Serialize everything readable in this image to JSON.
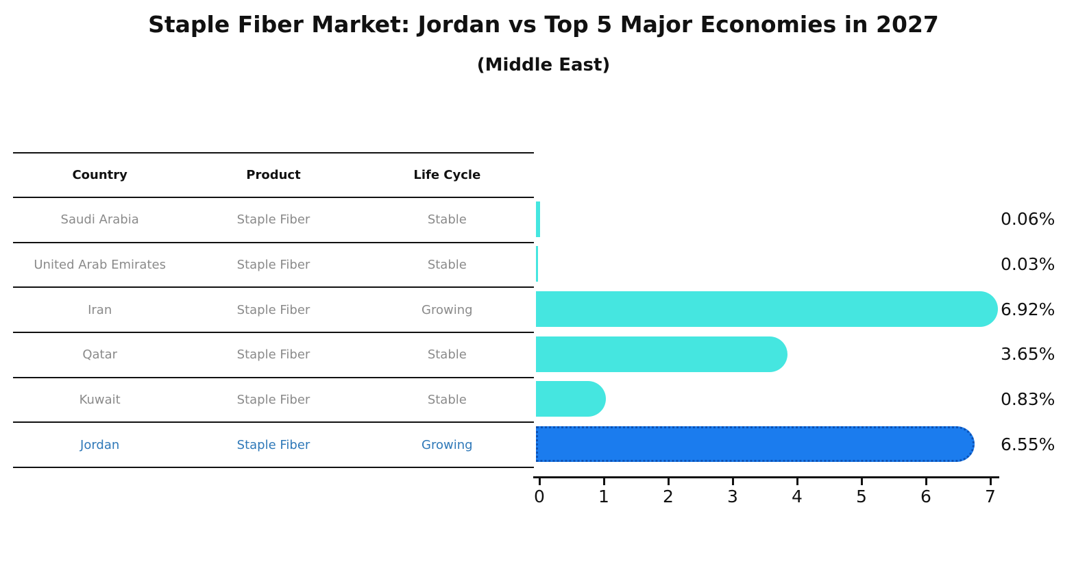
{
  "title": "Staple Fiber Market: Jordan vs Top 5 Major Economies in 2027",
  "subtitle": "(Middle East)",
  "table": {
    "headers": {
      "country": "Country",
      "product": "Product",
      "life_cycle": "Life Cycle"
    },
    "rows": [
      {
        "country": "Saudi Arabia",
        "product": "Staple Fiber",
        "life_cycle": "Stable",
        "highlight": false
      },
      {
        "country": "United Arab Emirates",
        "product": "Staple Fiber",
        "life_cycle": "Stable",
        "highlight": false
      },
      {
        "country": "Iran",
        "product": "Staple Fiber",
        "life_cycle": "Growing",
        "highlight": false
      },
      {
        "country": "Qatar",
        "product": "Staple Fiber",
        "life_cycle": "Stable",
        "highlight": false
      },
      {
        "country": "Kuwait",
        "product": "Staple Fiber",
        "life_cycle": "Stable",
        "highlight": false
      },
      {
        "country": "Jordan",
        "product": "Staple Fiber",
        "life_cycle": "Growing",
        "highlight": true
      }
    ]
  },
  "chart_data": {
    "type": "bar",
    "orientation": "horizontal",
    "title": "Staple Fiber Market: Jordan vs Top 5 Major Economies in 2027 (Middle East)",
    "categories": [
      "Saudi Arabia",
      "United Arab Emirates",
      "Iran",
      "Qatar",
      "Kuwait",
      "Jordan"
    ],
    "values": [
      0.06,
      0.03,
      6.92,
      3.65,
      0.83,
      6.55
    ],
    "value_labels": [
      "0.06%",
      "0.03%",
      "6.92%",
      "3.65%",
      "0.83%",
      "6.55%"
    ],
    "xlabel": "",
    "ylabel": "",
    "xlim": [
      0,
      7.2
    ],
    "xticks": [
      "0",
      "1",
      "2",
      "3",
      "4",
      "5",
      "6",
      "7"
    ],
    "grid": false,
    "legend": false,
    "bar_color": "#45e6e0",
    "highlight_index": 5,
    "highlight_color": "#1b7cee",
    "highlight_border_color": "#0c51b4",
    "highlight_border_style": "dotted",
    "text_color_default": "#8a8a8a",
    "text_color_highlight": "#2e78b8"
  }
}
